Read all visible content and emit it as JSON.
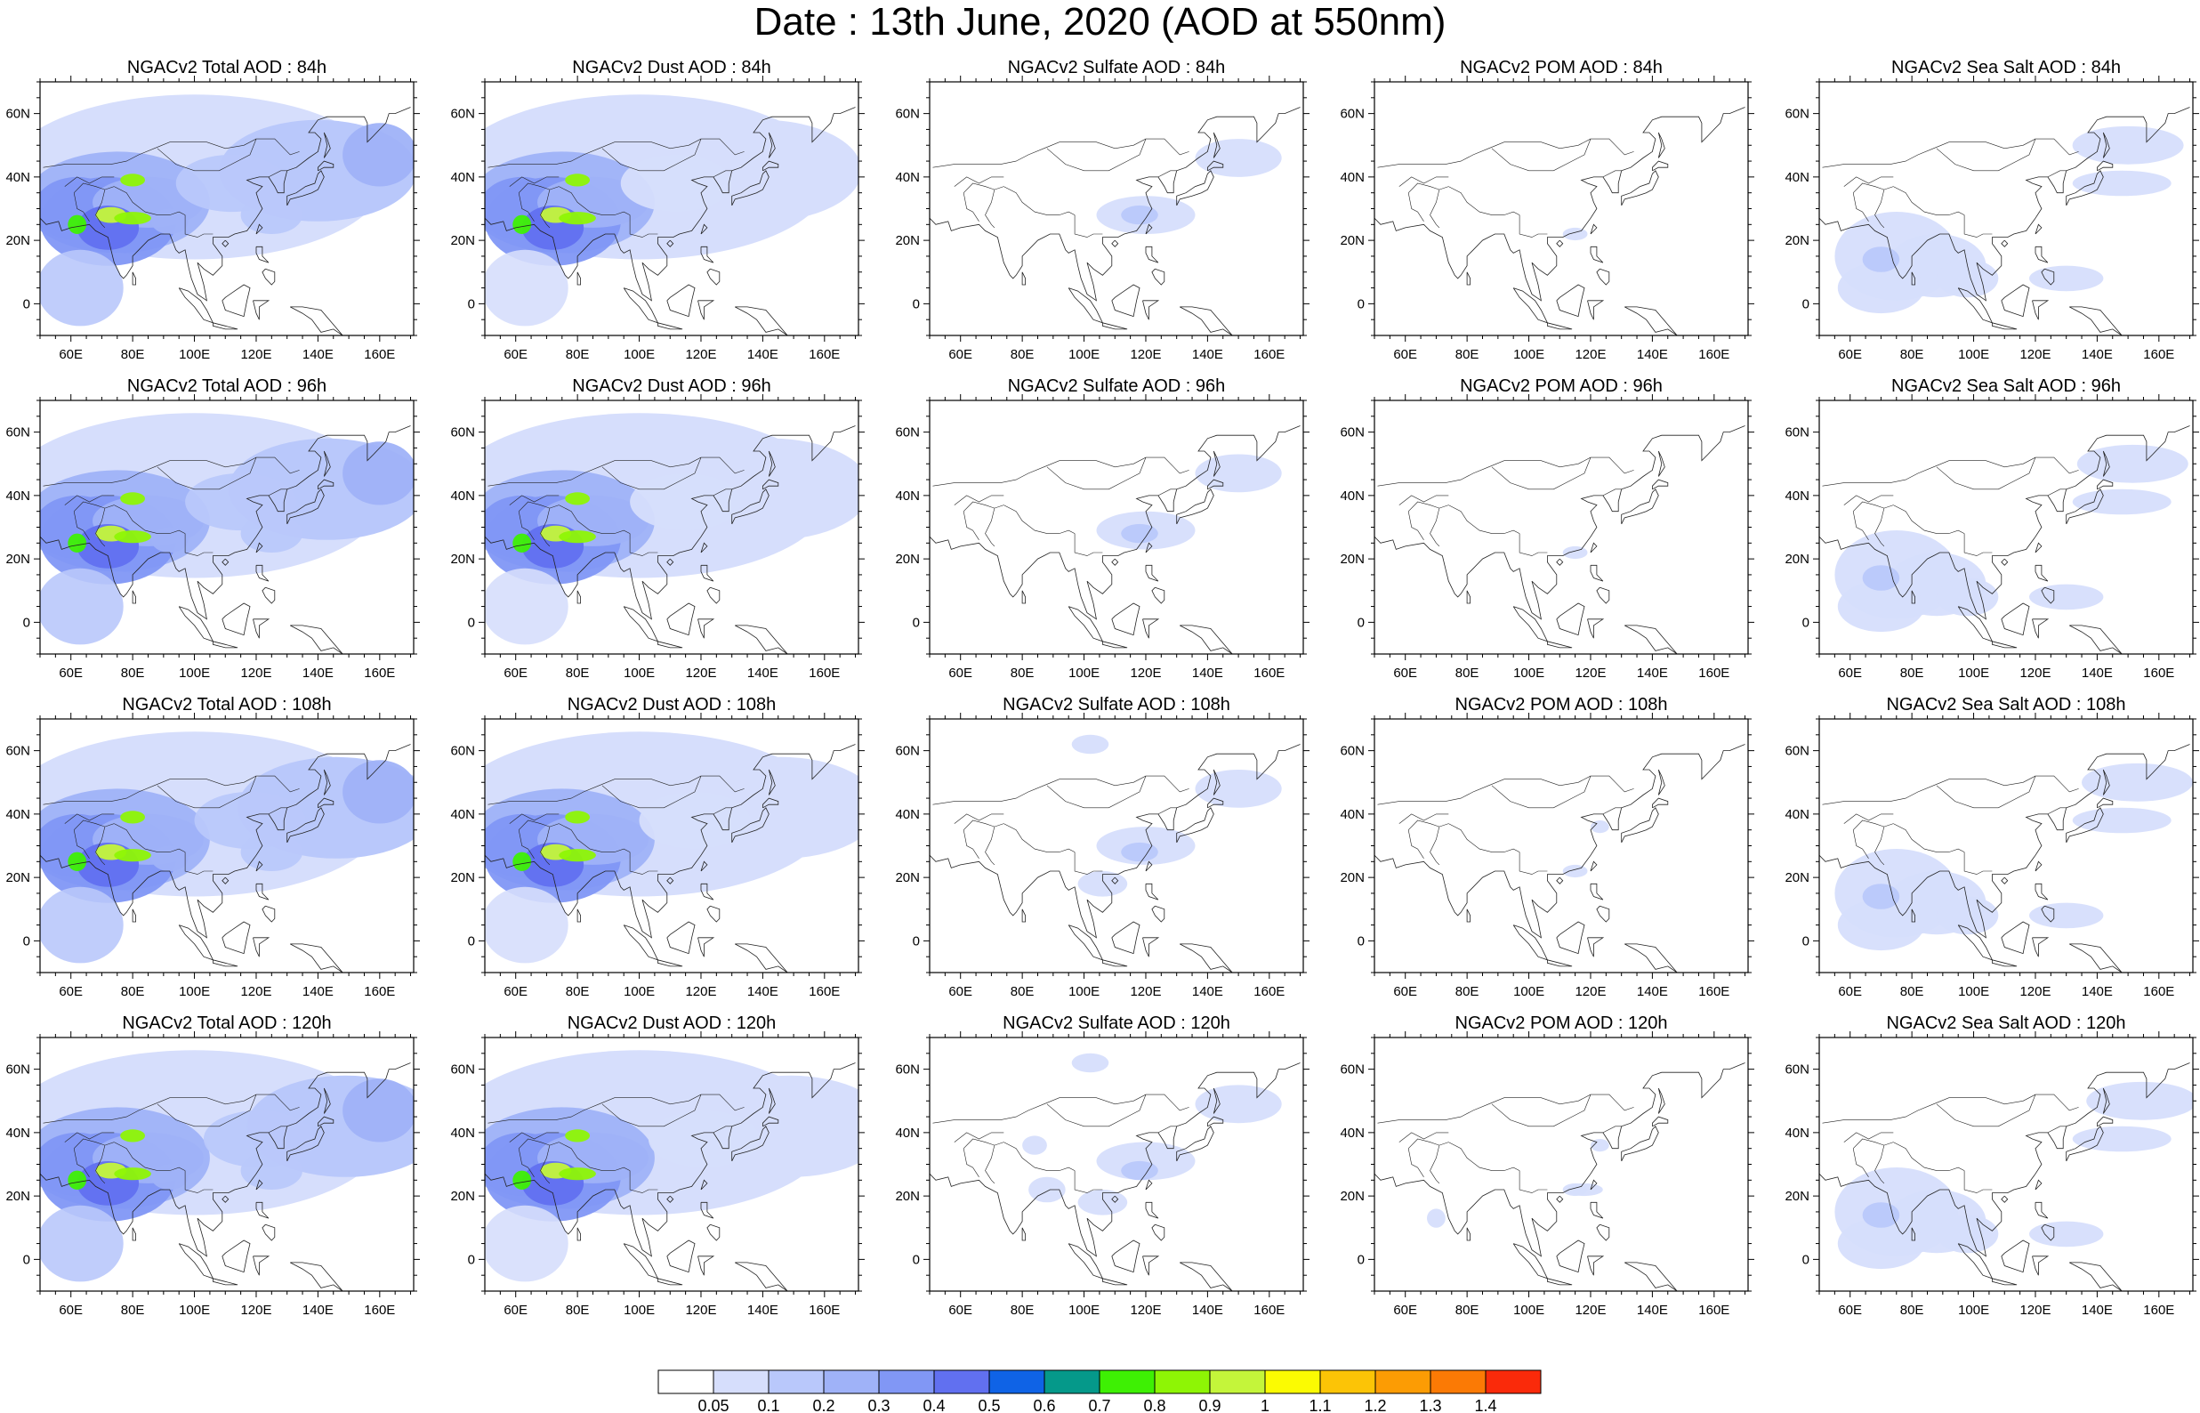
{
  "title": "Date : 13th June, 2020 (AOD at 550nm)",
  "axes": {
    "lon_range": [
      50,
      171
    ],
    "lat_range": [
      -10,
      70
    ],
    "lon_ticks": [
      {
        "value": 60,
        "label": "60E"
      },
      {
        "value": 80,
        "label": "80E"
      },
      {
        "value": 100,
        "label": "100E"
      },
      {
        "value": 120,
        "label": "120E"
      },
      {
        "value": 140,
        "label": "140E"
      },
      {
        "value": 160,
        "label": "160E"
      }
    ],
    "lat_ticks": [
      {
        "value": 60,
        "label": "60N"
      },
      {
        "value": 40,
        "label": "40N"
      },
      {
        "value": 20,
        "label": "20N"
      },
      {
        "value": 0,
        "label": "0"
      }
    ]
  },
  "rows": [
    {
      "hour": "84h",
      "titles": [
        "NGACv2 Total AOD : 84h",
        "NGACv2 Dust AOD : 84h",
        "NGACv2 Sulfate AOD : 84h",
        "NGACv2 POM AOD : 84h",
        "NGACv2 Sea Salt AOD : 84h"
      ]
    },
    {
      "hour": "96h",
      "titles": [
        "NGACv2 Total AOD : 96h",
        "NGACv2 Dust AOD : 96h",
        "NGACv2 Sulfate AOD : 96h",
        "NGACv2 POM AOD : 96h",
        "NGACv2 Sea Salt AOD : 96h"
      ]
    },
    {
      "hour": "108h",
      "titles": [
        "NGACv2 Total AOD : 108h",
        "NGACv2 Dust AOD : 108h",
        "NGACv2 Sulfate AOD : 108h",
        "NGACv2 POM AOD : 108h",
        "NGACv2 Sea Salt AOD : 108h"
      ]
    },
    {
      "hour": "120h",
      "titles": [
        "NGACv2 Total AOD : 120h",
        "NGACv2 Dust AOD : 120h",
        "NGACv2 Sulfate AOD : 120h",
        "NGACv2 POM AOD : 120h",
        "NGACv2 Sea Salt  AOD : 120h"
      ]
    }
  ],
  "colorbar": {
    "labels": [
      "0.05",
      "0.1",
      "0.2",
      "0.3",
      "0.4",
      "0.5",
      "0.6",
      "0.7",
      "0.8",
      "0.9",
      "1",
      "1.1",
      "1.2",
      "1.3",
      "1.4"
    ],
    "colors": [
      "#ffffff",
      "#d6defc",
      "#b9c8fb",
      "#9fb2f8",
      "#8197f5",
      "#6170f0",
      "#0f63e6",
      "#05998a",
      "#3ef004",
      "#8ef505",
      "#c4f53a",
      "#fbfb02",
      "#fcc406",
      "#fc9c04",
      "#fb7a05",
      "#fa2a0a"
    ]
  }
}
